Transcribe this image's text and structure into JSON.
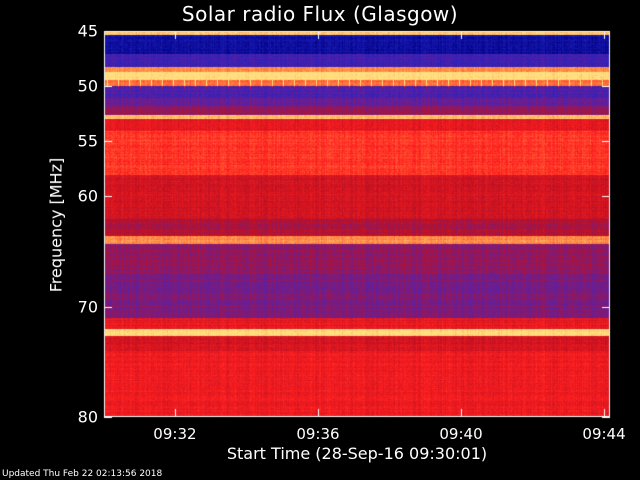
{
  "title": "Solar radio Flux (Glasgow)",
  "footer": "Updated Thu Feb 22 02:13:56 2018",
  "chart_data": {
    "type": "heatmap",
    "title": "Solar radio Flux (Glasgow)",
    "xlabel": "Start Time (28-Sep-16 09:30:01)",
    "ylabel": "Frequency [MHz]",
    "x_range": [
      "09:30:01",
      "09:44:10"
    ],
    "y_range": [
      45,
      80
    ],
    "y_reversed": true,
    "x_ticks": [
      "09:32",
      "09:36",
      "09:40",
      "09:44"
    ],
    "x_tick_minutes": [
      2,
      6,
      10,
      14
    ],
    "y_ticks": [
      45,
      50,
      55,
      60,
      70,
      80
    ],
    "colormap": [
      "#000080",
      "#2020c0",
      "#6020a0",
      "#c01020",
      "#ff2020",
      "#ff8040",
      "#ffe080"
    ],
    "bands": [
      {
        "from": 45.0,
        "to": 45.3,
        "level": 0.95
      },
      {
        "from": 45.3,
        "to": 47.0,
        "level": 0.08
      },
      {
        "from": 47.0,
        "to": 48.2,
        "level": 0.25
      },
      {
        "from": 48.2,
        "to": 48.7,
        "level": 0.85
      },
      {
        "from": 48.7,
        "to": 49.4,
        "level": 1.0
      },
      {
        "from": 49.4,
        "to": 49.9,
        "level": 0.8
      },
      {
        "from": 49.9,
        "to": 51.0,
        "level": 0.28
      },
      {
        "from": 51.0,
        "to": 51.8,
        "level": 0.35
      },
      {
        "from": 51.8,
        "to": 52.6,
        "level": 0.42
      },
      {
        "from": 52.6,
        "to": 52.9,
        "level": 0.95
      },
      {
        "from": 52.9,
        "to": 54.0,
        "level": 0.6
      },
      {
        "from": 54.0,
        "to": 58.0,
        "level": 0.7
      },
      {
        "from": 58.0,
        "to": 62.0,
        "level": 0.55
      },
      {
        "from": 62.0,
        "to": 63.5,
        "level": 0.47
      },
      {
        "from": 63.5,
        "to": 64.3,
        "level": 0.85
      },
      {
        "from": 64.3,
        "to": 67.0,
        "level": 0.42
      },
      {
        "from": 67.0,
        "to": 71.0,
        "level": 0.38
      },
      {
        "from": 71.0,
        "to": 72.0,
        "level": 0.6
      },
      {
        "from": 72.0,
        "to": 72.6,
        "level": 1.0
      },
      {
        "from": 72.6,
        "to": 74.0,
        "level": 0.55
      },
      {
        "from": 74.0,
        "to": 80.0,
        "level": 0.62
      }
    ]
  }
}
